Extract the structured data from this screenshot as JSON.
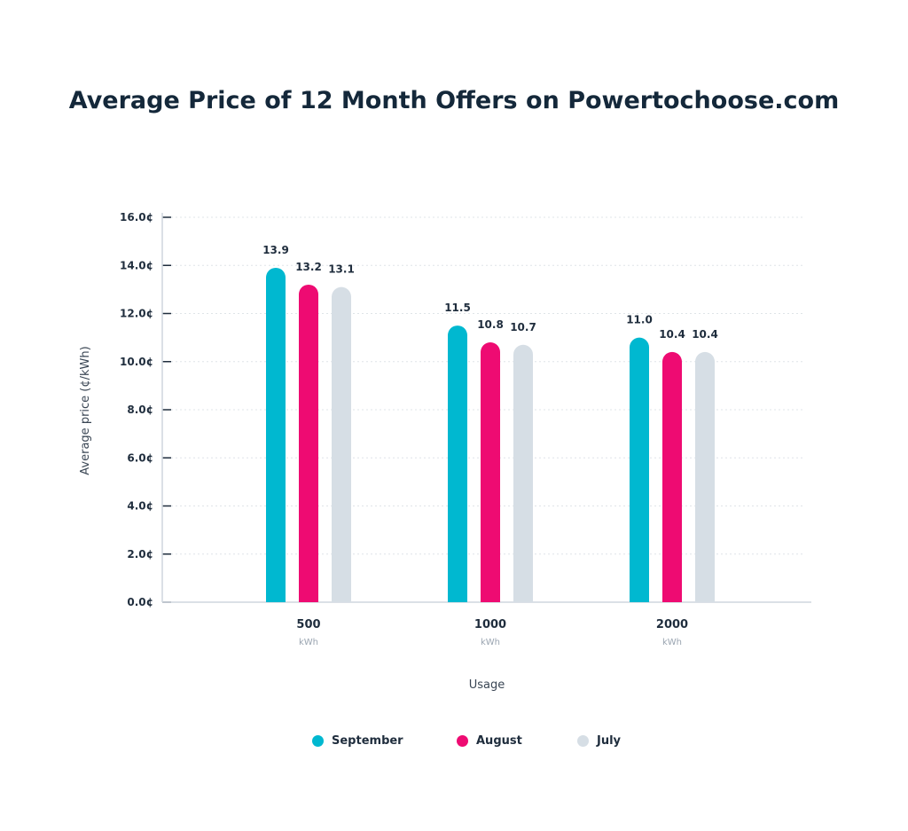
{
  "chart_data": {
    "type": "bar",
    "title": "Average Price of 12 Month Offers on Powertochoose.com",
    "xlabel": "Usage",
    "ylabel": "Average price (¢/kWh)",
    "categories": [
      "500",
      "1000",
      "2000"
    ],
    "category_unit": "kWh",
    "ylim": [
      0,
      16
    ],
    "yticks": [
      "0.0¢",
      "2.0¢",
      "4.0¢",
      "6.0¢",
      "8.0¢",
      "10.0¢",
      "12.0¢",
      "14.0¢",
      "16.0¢"
    ],
    "grid": true,
    "legend_position": "bottom",
    "series": [
      {
        "name": "September",
        "color": "#00b8d0",
        "values": [
          13.9,
          11.5,
          11.0
        ],
        "labels": [
          "13.9",
          "11.5",
          "11.0"
        ]
      },
      {
        "name": "August",
        "color": "#ee0b72",
        "values": [
          13.2,
          10.8,
          10.4
        ],
        "labels": [
          "13.2",
          "10.8",
          "10.4"
        ]
      },
      {
        "name": "July",
        "color": "#d6dee5",
        "values": [
          13.1,
          10.7,
          10.4
        ],
        "labels": [
          "13.1",
          "10.7",
          "10.4"
        ]
      }
    ]
  }
}
